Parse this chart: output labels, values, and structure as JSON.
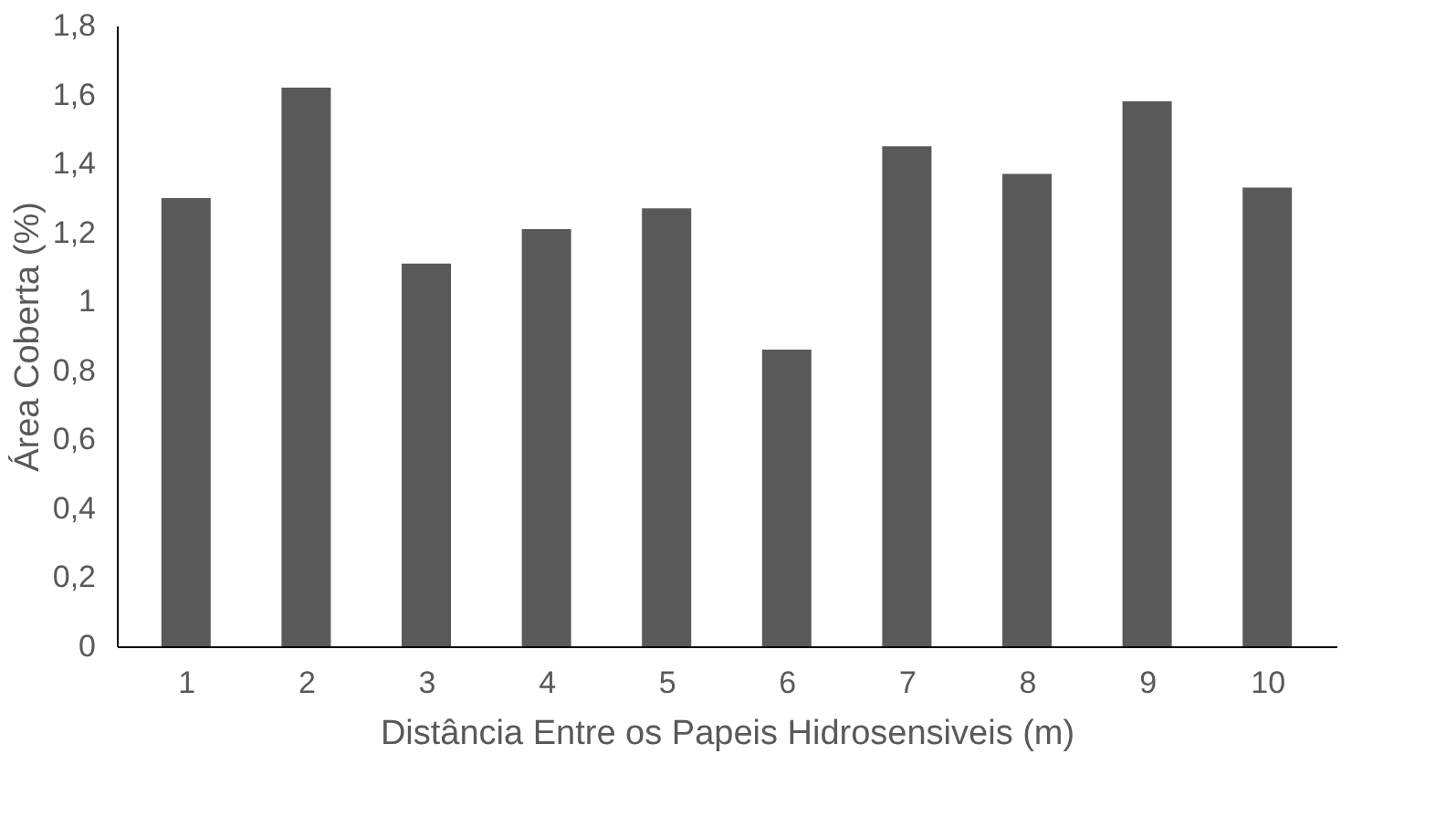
{
  "chart_data": {
    "type": "bar",
    "xlabel": "Distância Entre os Papeis Hidrosensiveis (m)",
    "ylabel": "Área Coberta (%)",
    "categories": [
      "1",
      "2",
      "3",
      "4",
      "5",
      "6",
      "7",
      "8",
      "9",
      "10"
    ],
    "values": [
      1.3,
      1.62,
      1.11,
      1.21,
      1.27,
      0.86,
      1.45,
      1.37,
      1.58,
      1.33
    ],
    "color": "#595959",
    "ylim": [
      0,
      1.8
    ],
    "yticks": [
      0,
      {
        "value": 0.2,
        "label": "0,2"
      },
      {
        "value": 0.4,
        "label": "0,4"
      },
      {
        "value": 0.6,
        "label": "0,6"
      },
      {
        "value": 0.8,
        "label": "0,8"
      },
      1,
      {
        "value": 1.2,
        "label": "1,2"
      },
      {
        "value": 1.4,
        "label": "1,4"
      },
      {
        "value": 1.6,
        "label": "1,6"
      },
      {
        "value": 1.8,
        "label": "1,8"
      }
    ],
    "grid": false
  }
}
